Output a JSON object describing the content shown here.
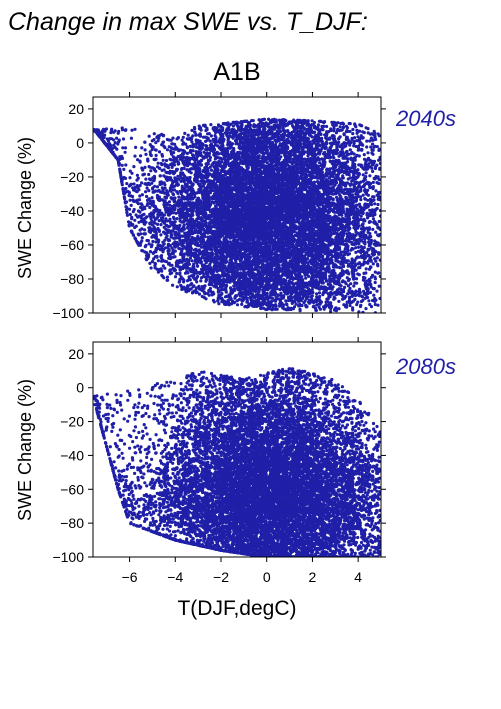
{
  "figure": {
    "title": "Change in max SWE vs. T_DJF:",
    "scenario": "A1B",
    "xlabel": "T(DJF,degC)",
    "point_color": "#1f1fa8"
  },
  "chart_data": [
    {
      "type": "scatter",
      "period": "2040s",
      "ylabel": "SWE Change (%)",
      "xlim": [
        -7.6,
        5.0
      ],
      "ylim": [
        -100,
        27
      ],
      "xticks": [
        -6,
        -4,
        -2,
        0,
        2,
        4
      ],
      "xtick_labels": [],
      "yticks": [
        20,
        0,
        -20,
        -40,
        -60,
        -80,
        -100
      ],
      "ytick_labels": [
        "20",
        "0",
        "−20",
        "−40",
        "−60",
        "−80",
        "−100"
      ],
      "upper_envelope": [
        [
          -7.5,
          8
        ],
        [
          -6,
          9
        ],
        [
          -4,
          4
        ],
        [
          -3,
          10
        ],
        [
          0,
          14
        ],
        [
          2,
          13
        ],
        [
          4,
          11
        ],
        [
          5,
          5
        ]
      ],
      "lower_envelope": [
        [
          -7.5,
          7
        ],
        [
          -6.5,
          -10
        ],
        [
          -6,
          -50
        ],
        [
          -5,
          -75
        ],
        [
          -4,
          -85
        ],
        [
          -3,
          -90
        ],
        [
          -2,
          -95
        ],
        [
          0,
          -98
        ],
        [
          5,
          -100
        ]
      ],
      "density_center": [
        -0.5,
        -40
      ],
      "approx_points": 12000
    },
    {
      "type": "scatter",
      "period": "2080s",
      "ylabel": "SWE Change (%)",
      "xlim": [
        -7.6,
        5.0
      ],
      "ylim": [
        -100,
        27
      ],
      "xticks": [
        -6,
        -4,
        -2,
        0,
        2,
        4
      ],
      "xtick_labels": [
        "−6",
        "−4",
        "−2",
        "0",
        "2",
        "4"
      ],
      "yticks": [
        20,
        0,
        -20,
        -40,
        -60,
        -80,
        -100
      ],
      "ytick_labels": [
        "20",
        "0",
        "−20",
        "−40",
        "−60",
        "−80",
        "−100"
      ],
      "upper_envelope": [
        [
          -7.5,
          -5
        ],
        [
          -6,
          0
        ],
        [
          -4,
          4
        ],
        [
          -3,
          10
        ],
        [
          -1,
          5
        ],
        [
          1,
          12
        ],
        [
          3,
          5
        ],
        [
          5,
          -20
        ]
      ],
      "lower_envelope": [
        [
          -7.5,
          -10
        ],
        [
          -6.5,
          -60
        ],
        [
          -6,
          -80
        ],
        [
          -4,
          -90
        ],
        [
          -2,
          -96
        ],
        [
          0,
          -100
        ],
        [
          5,
          -100
        ]
      ],
      "density_center": [
        -0.5,
        -65
      ],
      "approx_points": 12000
    }
  ]
}
